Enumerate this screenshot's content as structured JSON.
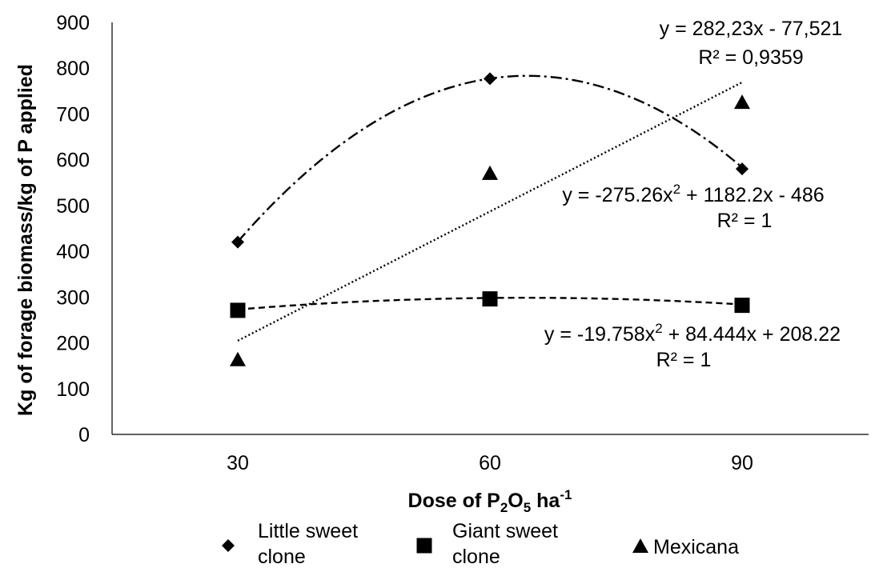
{
  "chart_data": {
    "type": "scatter",
    "x": [
      "30",
      "60",
      "90"
    ],
    "xlabel": {
      "prefix": "Dose of P",
      "sub1": "2",
      "mid": "O",
      "sub2": "5",
      "unit": " ha",
      "sup": "-1"
    },
    "ylabel": "Kg of forage biomass/kg of P applied",
    "ylim": [
      0,
      900
    ],
    "yticks": [
      0,
      100,
      200,
      300,
      400,
      500,
      600,
      700,
      800,
      900
    ],
    "grid": false,
    "legend_position": "bottom",
    "series": [
      {
        "name": "Little sweet clone",
        "name_lines": [
          "Little sweet",
          "clone"
        ],
        "marker": "diamond",
        "values": [
          420,
          777,
          580
        ],
        "trendline": {
          "type": "poly2",
          "coef": [
            -275.26,
            1182.2,
            -486
          ],
          "dash": "14 5 3 5"
        },
        "equation": {
          "pre": "y = -275.26x",
          "sup": "2",
          "post": " + 1182.2x - 486",
          "r2": "R² = 1"
        }
      },
      {
        "name": "Giant sweet clone",
        "name_lines": [
          "Giant sweet",
          "clone"
        ],
        "marker": "square",
        "values": [
          271,
          296,
          282
        ],
        "trendline": {
          "type": "poly2",
          "coef": [
            -19.758,
            84.444,
            208.22
          ],
          "dash": "8 5"
        },
        "equation": {
          "pre": "y = -19.758x",
          "sup": "2",
          "post": " + 84.444x + 208.22",
          "r2": "R² = 1"
        }
      },
      {
        "name": "Mexicana",
        "name_lines": [
          "Mexicana"
        ],
        "marker": "triangle",
        "values": [
          163,
          570,
          725
        ],
        "trendline": {
          "type": "linear",
          "coef": [
            282.23,
            -77.521
          ],
          "dash": "2 3"
        },
        "equation": {
          "text": "y = 282,23x - 77,521",
          "r2": "R² = 0,9359"
        }
      }
    ]
  }
}
